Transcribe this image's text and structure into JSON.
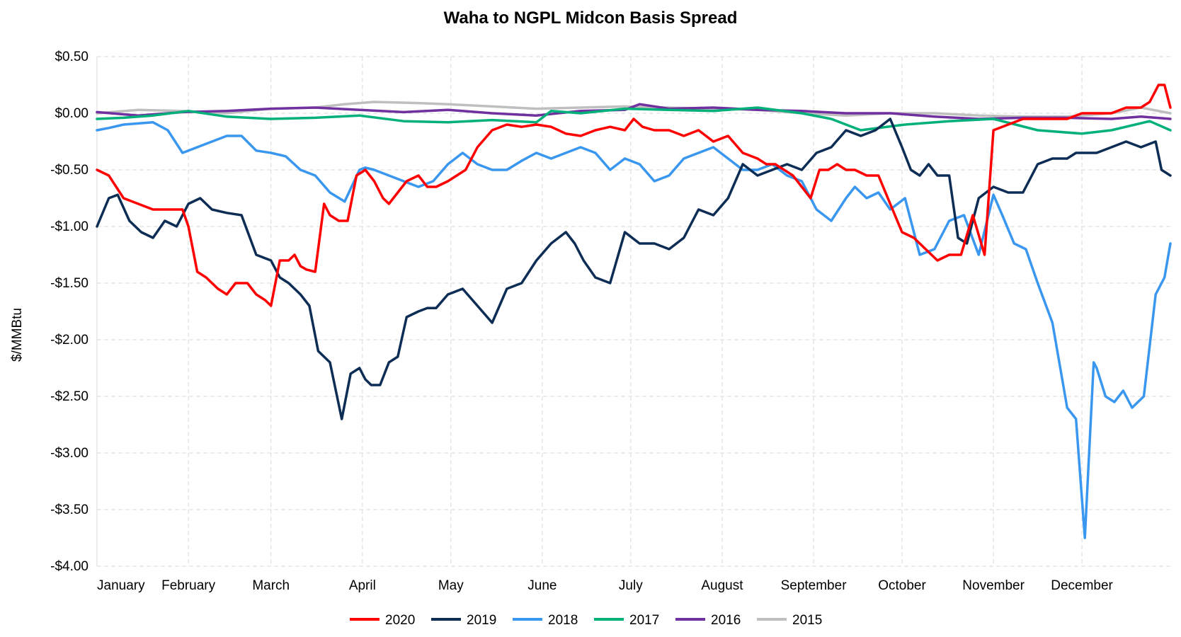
{
  "chart_data": {
    "type": "line",
    "title": "Waha to NGPL Midcon Basis Spread",
    "xlabel": "",
    "ylabel": "$/MMBtu",
    "ylim": [
      -4.0,
      0.5
    ],
    "yticks": [
      0.5,
      0.0,
      -0.5,
      -1.0,
      -1.5,
      -2.0,
      -2.5,
      -3.0,
      -3.5,
      -4.0
    ],
    "ytick_labels": [
      "$0.50",
      "$0.00",
      "-$0.50",
      "-$1.00",
      "-$1.50",
      "-$2.00",
      "-$2.50",
      "-$3.00",
      "-$3.50",
      "-$4.00"
    ],
    "x_unit": "day of year",
    "xlim": [
      1,
      365
    ],
    "xticks": [
      1,
      32,
      60,
      91,
      121,
      152,
      182,
      213,
      244,
      274,
      305,
      335
    ],
    "xtick_labels": [
      "January",
      "February",
      "March",
      "April",
      "May",
      "June",
      "July",
      "August",
      "September",
      "October",
      "November",
      "December"
    ],
    "grid": true,
    "legend_position": "bottom",
    "series": [
      {
        "name": "2015",
        "color": "#bfbfbf",
        "x": [
          1,
          15,
          30,
          45,
          60,
          75,
          85,
          95,
          110,
          120,
          135,
          150,
          165,
          180,
          195,
          210,
          225,
          240,
          255,
          270,
          285,
          300,
          315,
          330,
          345,
          355,
          365
        ],
        "y": [
          0.0,
          0.03,
          0.02,
          0.0,
          0.04,
          0.05,
          0.08,
          0.1,
          0.09,
          0.08,
          0.06,
          0.04,
          0.05,
          0.06,
          0.05,
          0.04,
          0.03,
          0.0,
          -0.02,
          0.0,
          0.0,
          -0.02,
          -0.03,
          -0.03,
          0.0,
          0.05,
          0.0
        ]
      },
      {
        "name": "2016",
        "color": "#7030a0",
        "x": [
          1,
          15,
          30,
          45,
          60,
          75,
          90,
          105,
          120,
          135,
          150,
          165,
          180,
          185,
          195,
          210,
          225,
          240,
          255,
          270,
          285,
          300,
          315,
          330,
          345,
          355,
          365
        ],
        "y": [
          0.01,
          -0.02,
          0.01,
          0.02,
          0.04,
          0.05,
          0.03,
          0.01,
          0.03,
          0.0,
          -0.02,
          0.02,
          0.03,
          0.08,
          0.04,
          0.05,
          0.03,
          0.02,
          0.0,
          0.0,
          -0.03,
          -0.05,
          -0.04,
          -0.04,
          -0.05,
          -0.03,
          -0.05
        ]
      },
      {
        "name": "2017",
        "color": "#00b07a",
        "x": [
          1,
          10,
          20,
          32,
          45,
          60,
          75,
          90,
          105,
          120,
          135,
          150,
          155,
          165,
          180,
          195,
          210,
          225,
          240,
          250,
          260,
          275,
          290,
          305,
          320,
          335,
          345,
          358,
          365
        ],
        "y": [
          -0.05,
          -0.04,
          -0.02,
          0.02,
          -0.03,
          -0.05,
          -0.04,
          -0.02,
          -0.07,
          -0.08,
          -0.06,
          -0.08,
          0.02,
          0.0,
          0.04,
          0.03,
          0.02,
          0.05,
          0.0,
          -0.05,
          -0.15,
          -0.1,
          -0.07,
          -0.05,
          -0.15,
          -0.18,
          -0.15,
          -0.07,
          -0.15
        ]
      },
      {
        "name": "2018",
        "color": "#3a97f0",
        "x": [
          1,
          5,
          10,
          20,
          25,
          30,
          35,
          40,
          45,
          50,
          55,
          60,
          65,
          70,
          75,
          80,
          85,
          90,
          92,
          95,
          100,
          105,
          110,
          115,
          120,
          125,
          130,
          135,
          140,
          145,
          150,
          155,
          160,
          165,
          170,
          175,
          180,
          185,
          190,
          195,
          200,
          205,
          210,
          215,
          220,
          225,
          230,
          235,
          240,
          245,
          250,
          255,
          258,
          262,
          266,
          270,
          275,
          280,
          285,
          290,
          295,
          300,
          305,
          308,
          312,
          316,
          320,
          325,
          330,
          333,
          336,
          339,
          340,
          343,
          346,
          349,
          352,
          356,
          360,
          363,
          365
        ],
        "y": [
          -0.15,
          -0.13,
          -0.1,
          -0.08,
          -0.15,
          -0.35,
          -0.3,
          -0.25,
          -0.2,
          -0.2,
          -0.33,
          -0.35,
          -0.38,
          -0.5,
          -0.55,
          -0.7,
          -0.78,
          -0.5,
          -0.48,
          -0.5,
          -0.55,
          -0.6,
          -0.65,
          -0.6,
          -0.45,
          -0.35,
          -0.45,
          -0.5,
          -0.5,
          -0.42,
          -0.35,
          -0.4,
          -0.35,
          -0.3,
          -0.35,
          -0.5,
          -0.4,
          -0.45,
          -0.6,
          -0.55,
          -0.4,
          -0.35,
          -0.3,
          -0.4,
          -0.5,
          -0.5,
          -0.45,
          -0.55,
          -0.6,
          -0.85,
          -0.95,
          -0.75,
          -0.65,
          -0.75,
          -0.7,
          -0.85,
          -0.75,
          -1.25,
          -1.2,
          -0.95,
          -0.9,
          -1.25,
          -0.72,
          -0.9,
          -1.15,
          -1.2,
          -1.5,
          -1.85,
          -2.6,
          -2.7,
          -3.75,
          -2.2,
          -2.25,
          -2.5,
          -2.55,
          -2.45,
          -2.6,
          -2.5,
          -1.6,
          -1.45,
          -1.15
        ]
      },
      {
        "name": "2019",
        "color": "#0d2d55",
        "x": [
          1,
          5,
          8,
          12,
          16,
          20,
          24,
          28,
          32,
          36,
          40,
          45,
          50,
          55,
          60,
          63,
          66,
          70,
          73,
          76,
          80,
          84,
          87,
          90,
          92,
          94,
          97,
          100,
          103,
          106,
          110,
          113,
          116,
          120,
          125,
          130,
          135,
          140,
          145,
          150,
          155,
          160,
          163,
          166,
          170,
          175,
          180,
          185,
          190,
          195,
          200,
          205,
          210,
          215,
          220,
          225,
          230,
          235,
          240,
          245,
          250,
          255,
          260,
          265,
          270,
          274,
          277,
          280,
          283,
          286,
          290,
          293,
          296,
          300,
          305,
          310,
          315,
          320,
          325,
          330,
          333,
          336,
          340,
          345,
          350,
          355,
          360,
          362,
          365
        ],
        "y": [
          -1.0,
          -0.75,
          -0.72,
          -0.95,
          -1.05,
          -1.1,
          -0.95,
          -1.0,
          -0.8,
          -0.75,
          -0.85,
          -0.88,
          -0.9,
          -1.25,
          -1.3,
          -1.45,
          -1.5,
          -1.6,
          -1.7,
          -2.1,
          -2.2,
          -2.7,
          -2.3,
          -2.25,
          -2.35,
          -2.4,
          -2.4,
          -2.2,
          -2.15,
          -1.8,
          -1.75,
          -1.72,
          -1.72,
          -1.6,
          -1.55,
          -1.7,
          -1.85,
          -1.55,
          -1.5,
          -1.3,
          -1.15,
          -1.05,
          -1.15,
          -1.3,
          -1.45,
          -1.5,
          -1.05,
          -1.15,
          -1.15,
          -1.2,
          -1.1,
          -0.85,
          -0.9,
          -0.75,
          -0.45,
          -0.55,
          -0.5,
          -0.45,
          -0.5,
          -0.35,
          -0.3,
          -0.15,
          -0.2,
          -0.15,
          -0.05,
          -0.3,
          -0.5,
          -0.55,
          -0.45,
          -0.55,
          -0.55,
          -1.1,
          -1.15,
          -0.75,
          -0.65,
          -0.7,
          -0.7,
          -0.45,
          -0.4,
          -0.4,
          -0.35,
          -0.35,
          -0.35,
          -0.3,
          -0.25,
          -0.3,
          -0.25,
          -0.5,
          -0.55
        ]
      },
      {
        "name": "2020",
        "color": "#ff0000",
        "x": [
          1,
          5,
          10,
          15,
          20,
          25,
          28,
          30,
          32,
          35,
          38,
          42,
          45,
          48,
          52,
          55,
          58,
          60,
          63,
          66,
          68,
          70,
          72,
          75,
          78,
          80,
          83,
          86,
          89,
          92,
          95,
          98,
          100,
          103,
          106,
          110,
          113,
          116,
          120,
          123,
          126,
          130,
          135,
          140,
          145,
          150,
          155,
          160,
          165,
          170,
          175,
          180,
          183,
          186,
          190,
          195,
          200,
          205,
          210,
          215,
          220,
          225,
          228,
          231,
          234,
          237,
          240,
          243,
          246,
          249,
          252,
          255,
          258,
          262,
          266,
          270,
          274,
          278,
          282,
          286,
          290,
          294,
          298,
          302,
          305,
          310,
          315,
          320,
          325,
          330,
          335,
          340,
          345,
          350,
          355,
          358,
          361,
          363,
          365
        ],
        "y": [
          -0.5,
          -0.55,
          -0.75,
          -0.8,
          -0.85,
          -0.85,
          -0.85,
          -0.85,
          -1.0,
          -1.4,
          -1.45,
          -1.55,
          -1.6,
          -1.5,
          -1.5,
          -1.6,
          -1.65,
          -1.7,
          -1.3,
          -1.3,
          -1.25,
          -1.35,
          -1.38,
          -1.4,
          -0.8,
          -0.9,
          -0.95,
          -0.95,
          -0.55,
          -0.5,
          -0.6,
          -0.75,
          -0.8,
          -0.7,
          -0.6,
          -0.55,
          -0.65,
          -0.65,
          -0.6,
          -0.55,
          -0.5,
          -0.3,
          -0.15,
          -0.1,
          -0.12,
          -0.1,
          -0.12,
          -0.18,
          -0.2,
          -0.15,
          -0.12,
          -0.15,
          -0.05,
          -0.12,
          -0.15,
          -0.15,
          -0.2,
          -0.15,
          -0.25,
          -0.2,
          -0.35,
          -0.4,
          -0.45,
          -0.45,
          -0.5,
          -0.55,
          -0.65,
          -0.75,
          -0.5,
          -0.5,
          -0.45,
          -0.5,
          -0.5,
          -0.55,
          -0.55,
          -0.8,
          -1.05,
          -1.1,
          -1.2,
          -1.3,
          -1.25,
          -1.25,
          -0.9,
          -1.25,
          -0.15,
          -0.1,
          -0.05,
          -0.05,
          -0.05,
          -0.05,
          0.0,
          0.0,
          0.0,
          0.05,
          0.05,
          0.1,
          0.25,
          0.25,
          0.05
        ]
      }
    ]
  }
}
